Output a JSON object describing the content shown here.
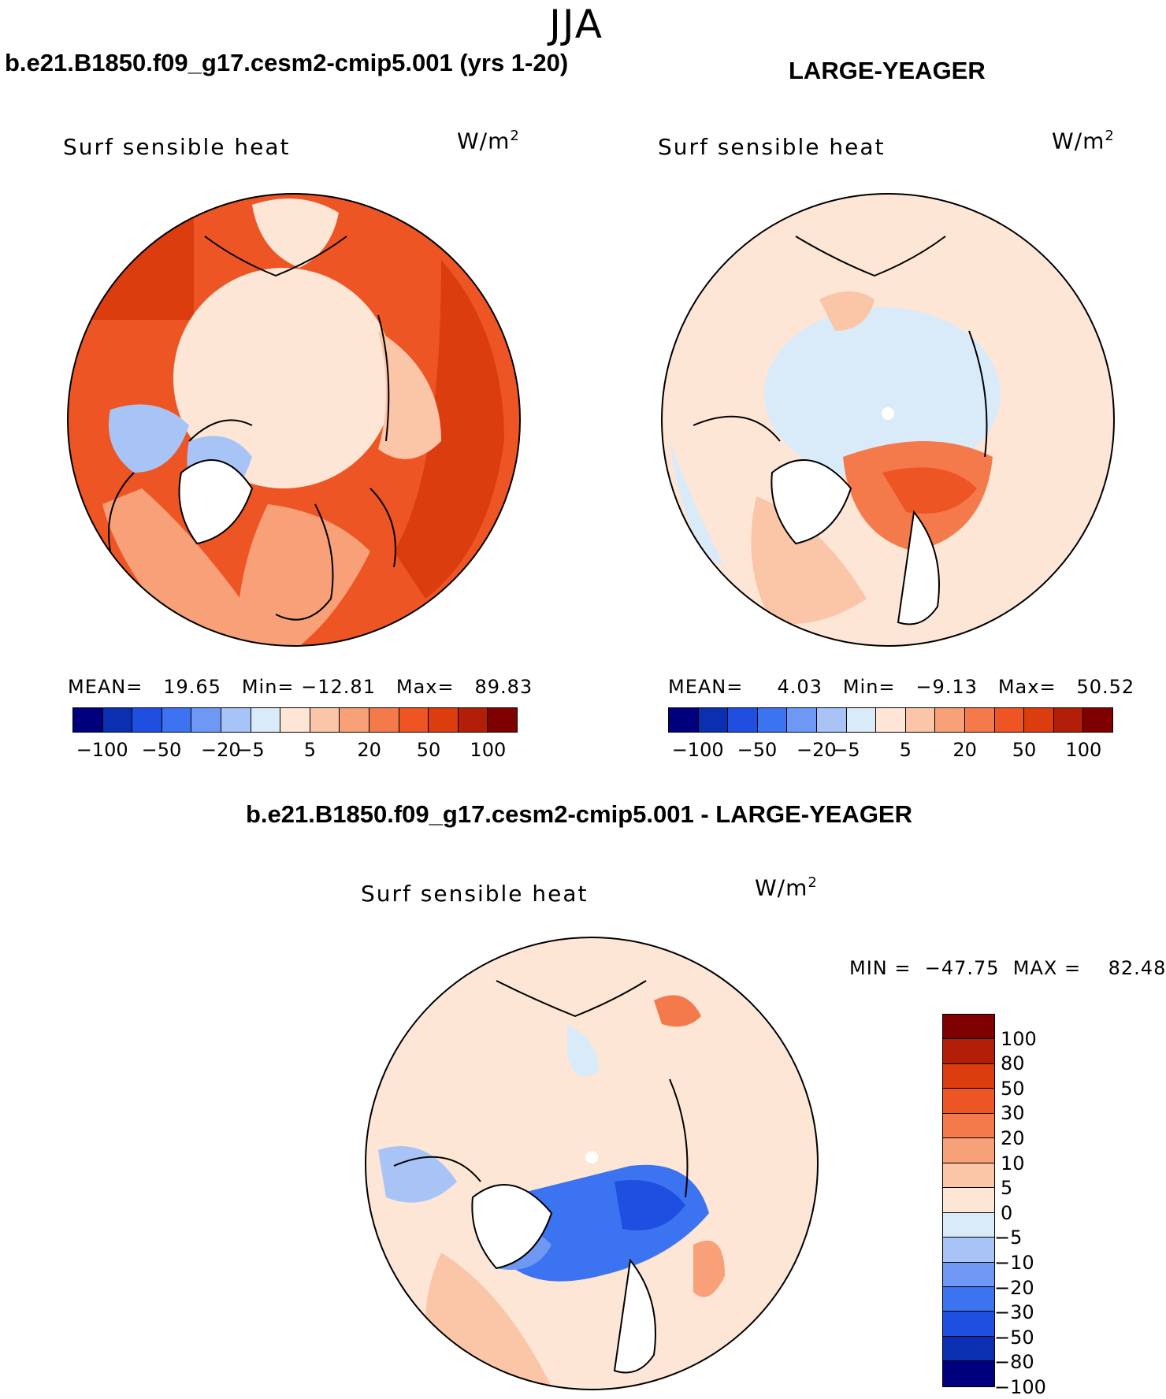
{
  "season": "JJA",
  "panels": [
    {
      "title": "b.e21.B1850.f09_g17.cesm2-cmip5.001 (yrs 1-20)",
      "variable": "Surf sensible heat",
      "units": "W/m",
      "units_sup": "2",
      "stats": "MEAN=   19.65   Min= −12.81   Max=   89.83",
      "map": "Arctic polar-stereographic map; strongly positive (orange/red) over continents, near-zero pale over Arctic Ocean"
    },
    {
      "title": "LARGE-YEAGER",
      "variable": "Surf sensible heat",
      "units": "W/m",
      "units_sup": "2",
      "stats": "MEAN=     4.03   Min=   −9.13   Max=   50.52",
      "map": "Arctic polar-stereographic map; mostly pale, weakly negative over central Arctic, positive over Barents/Kara Sea"
    }
  ],
  "diff_panel": {
    "title": "b.e21.B1850.f09_g17.cesm2-cmip5.001 - LARGE-YEAGER",
    "variable": "Surf sensible heat",
    "units": "W/m",
    "units_sup": "2",
    "minmax": "MIN =  −47.75  MAX =    82.48"
  },
  "colorbar_top": {
    "labels": [
      "−100",
      "−50",
      "−20",
      "−5",
      "5",
      "20",
      "50",
      "100"
    ],
    "colors": [
      "#00007f",
      "#0a2fb0",
      "#1e4fe0",
      "#3c73f0",
      "#6f98f4",
      "#a8c4f6",
      "#d9eaf9",
      "#fde6d6",
      "#fbc5a7",
      "#f8a078",
      "#f4794b",
      "#ee5524",
      "#db3d0f",
      "#b31e08",
      "#7f0000"
    ]
  },
  "colorbar_diff": {
    "labels": [
      "100",
      "80",
      "50",
      "30",
      "20",
      "10",
      "5",
      "0",
      "−5",
      "−10",
      "−20",
      "−30",
      "−50",
      "−80",
      "−100"
    ],
    "colors": [
      "#7f0000",
      "#b31e08",
      "#db3d0f",
      "#ee5524",
      "#f4794b",
      "#f8a078",
      "#fbc5a7",
      "#fde6d6",
      "#d9eaf9",
      "#a8c4f6",
      "#6f98f4",
      "#3c73f0",
      "#1e4fe0",
      "#0a2fb0",
      "#00007f"
    ]
  }
}
